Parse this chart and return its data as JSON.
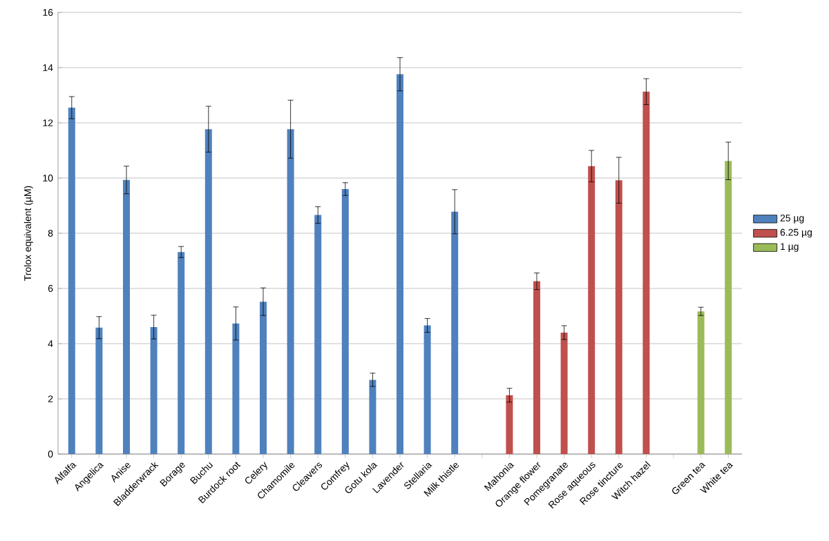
{
  "chart_data": {
    "type": "bar",
    "ylabel": "Trolox equivalent (µM)",
    "categories": [
      "Alfalfa",
      "Angelica",
      "Anise",
      "Bladderwrack",
      "Borage",
      "Buchu",
      "Burdock root",
      "Celery",
      "Chamomile",
      "Cleavers",
      "Comfrey",
      "Gotu kola",
      "Lavender",
      "Stellaria",
      "Milk thistle",
      null,
      "Mahonia",
      "Orange flower",
      "Pomegranate",
      "Rose  aqueous",
      "Rose tincture",
      "Witch hazel",
      null,
      "Green tea",
      "White tea"
    ],
    "series": [
      {
        "name": "25 µg",
        "color": "#4f81bd",
        "values": [
          12.55,
          4.58,
          9.93,
          4.6,
          7.32,
          11.77,
          4.73,
          5.52,
          11.77,
          8.66,
          9.6,
          2.69,
          13.76,
          4.66,
          8.78,
          null,
          null,
          null,
          null,
          null,
          null,
          null,
          null,
          null,
          null
        ],
        "errors": [
          0.4,
          0.4,
          0.5,
          0.43,
          0.2,
          0.83,
          0.6,
          0.5,
          1.05,
          0.3,
          0.23,
          0.24,
          0.6,
          0.25,
          0.8,
          null,
          null,
          null,
          null,
          null,
          null,
          null,
          null,
          null,
          null
        ]
      },
      {
        "name": "6.25 µg",
        "color": "#c0504d",
        "values": [
          null,
          null,
          null,
          null,
          null,
          null,
          null,
          null,
          null,
          null,
          null,
          null,
          null,
          null,
          null,
          null,
          2.13,
          6.26,
          4.4,
          10.43,
          9.92,
          13.13,
          null,
          null,
          null
        ],
        "errors": [
          null,
          null,
          null,
          null,
          null,
          null,
          null,
          null,
          null,
          null,
          null,
          null,
          null,
          null,
          null,
          null,
          0.25,
          0.3,
          0.25,
          0.57,
          0.83,
          0.47,
          null,
          null,
          null
        ]
      },
      {
        "name": "1 µg",
        "color": "#9bbb59",
        "values": [
          null,
          null,
          null,
          null,
          null,
          null,
          null,
          null,
          null,
          null,
          null,
          null,
          null,
          null,
          null,
          null,
          null,
          null,
          null,
          null,
          null,
          null,
          null,
          5.17,
          10.62
        ],
        "errors": [
          null,
          null,
          null,
          null,
          null,
          null,
          null,
          null,
          null,
          null,
          null,
          null,
          null,
          null,
          null,
          null,
          null,
          null,
          null,
          null,
          null,
          null,
          null,
          0.15,
          0.68
        ]
      }
    ],
    "ylim": [
      0,
      16
    ],
    "yticks": [
      0,
      2,
      4,
      6,
      8,
      10,
      12,
      14,
      16
    ],
    "grid": "y",
    "legend": "right"
  }
}
